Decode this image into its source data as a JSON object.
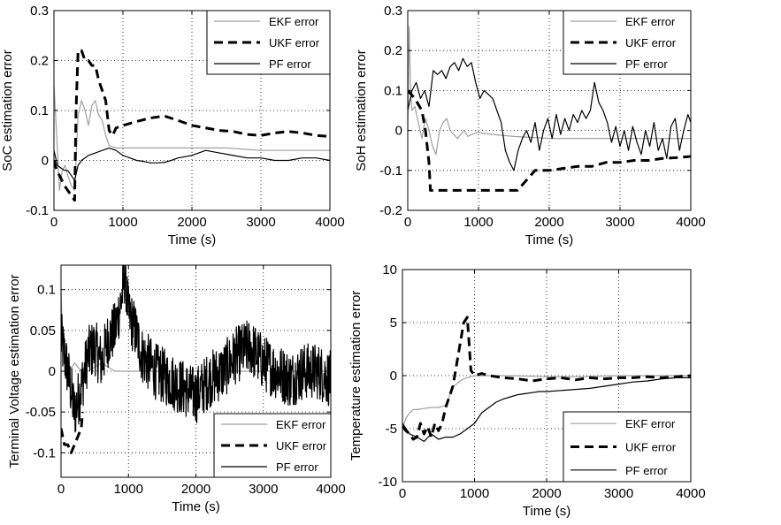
{
  "figure": {
    "layout": "2x2 grid of line charts"
  },
  "chart_data": [
    {
      "type": "line",
      "xlabel": "Time (s)",
      "ylabel": "SoC estimation error",
      "xlim": [
        0,
        4000
      ],
      "ylim": [
        -0.1,
        0.3
      ],
      "xticks": [
        0,
        1000,
        2000,
        3000,
        4000
      ],
      "yticks": [
        -0.1,
        0,
        0.1,
        0.2,
        0.3
      ],
      "xtick_labels": [
        "0",
        "1000",
        "2000",
        "3000",
        "4000"
      ],
      "ytick_labels": [
        "-0.1",
        "0",
        "0.1",
        "0.2",
        "0.3"
      ],
      "grid": true,
      "legend_position": "top-right",
      "series": [
        {
          "name": "EKF error",
          "color": "#a0a0a0",
          "style": "solid",
          "width": 1.2,
          "x": [
            0,
            40,
            80,
            120,
            160,
            200,
            250,
            300,
            350,
            400,
            450,
            500,
            550,
            600,
            650,
            700,
            750,
            800,
            900,
            1000,
            1200,
            1500,
            2000,
            2500,
            3000,
            3500,
            4000
          ],
          "y": [
            0.15,
            0.05,
            -0.06,
            -0.02,
            -0.01,
            -0.03,
            -0.05,
            -0.06,
            0.09,
            0.12,
            0.1,
            0.07,
            0.11,
            0.12,
            0.09,
            0.08,
            0.05,
            0.03,
            0.025,
            0.025,
            0.025,
            0.025,
            0.025,
            0.025,
            0.02,
            0.02,
            0.02
          ]
        },
        {
          "name": "UKF error",
          "color": "#000000",
          "style": "dashed",
          "width": 3,
          "x": [
            0,
            40,
            80,
            150,
            200,
            250,
            300,
            320,
            350,
            400,
            450,
            500,
            550,
            600,
            650,
            700,
            750,
            800,
            850,
            900,
            1000,
            1200,
            1400,
            1600,
            1800,
            2000,
            2200,
            2400,
            2600,
            2800,
            3000,
            3200,
            3400,
            3600,
            3800,
            4000
          ],
          "y": [
            0,
            -0.02,
            -0.03,
            -0.05,
            -0.06,
            -0.07,
            -0.08,
            0.1,
            0.22,
            0.22,
            0.2,
            0.2,
            0.19,
            0.19,
            0.16,
            0.14,
            0.12,
            0.06,
            0.05,
            0.065,
            0.07,
            0.078,
            0.085,
            0.089,
            0.08,
            0.07,
            0.065,
            0.06,
            0.058,
            0.052,
            0.05,
            0.055,
            0.058,
            0.055,
            0.05,
            0.048
          ]
        },
        {
          "name": "PF error",
          "color": "#000000",
          "style": "solid",
          "width": 1.2,
          "x": [
            0,
            50,
            100,
            150,
            200,
            250,
            300,
            350,
            400,
            500,
            600,
            700,
            800,
            900,
            1000,
            1100,
            1200,
            1300,
            1400,
            1500,
            1600,
            1700,
            1800,
            2000,
            2200,
            2400,
            2600,
            2800,
            3000,
            3200,
            3400,
            3600,
            3800,
            4000
          ],
          "y": [
            0.02,
            -0.01,
            -0.015,
            -0.02,
            -0.02,
            -0.03,
            -0.04,
            -0.01,
            0.0,
            0.01,
            0.015,
            0.02,
            0.025,
            0.02,
            0.01,
            0.005,
            0.0,
            -0.002,
            -0.005,
            -0.005,
            -0.004,
            0.0,
            0.005,
            0.01,
            0.02,
            0.015,
            0.01,
            0.005,
            0.005,
            0.0,
            0.0,
            0.005,
            0.005,
            0.0
          ]
        }
      ]
    },
    {
      "type": "line",
      "xlabel": "Time (s)",
      "ylabel": "SoH estimation error",
      "xlim": [
        0,
        4000
      ],
      "ylim": [
        -0.2,
        0.3
      ],
      "xticks": [
        0,
        1000,
        2000,
        3000,
        4000
      ],
      "yticks": [
        -0.2,
        -0.1,
        0,
        0.1,
        0.2,
        0.3
      ],
      "xtick_labels": [
        "0",
        "1000",
        "2000",
        "3000",
        "4000"
      ],
      "ytick_labels": [
        "-0.2",
        "-0.1",
        "0",
        "0.1",
        "0.2",
        "0.3"
      ],
      "grid": true,
      "legend_position": "top-right",
      "series": [
        {
          "name": "EKF error",
          "color": "#a0a0a0",
          "style": "solid",
          "width": 1.2,
          "x": [
            0,
            20,
            40,
            60,
            100,
            150,
            200,
            250,
            300,
            350,
            400,
            450,
            500,
            550,
            600,
            650,
            700,
            750,
            800,
            850,
            900,
            1000,
            1200,
            1500,
            2000,
            2500,
            3000,
            3500,
            4000
          ],
          "y": [
            0,
            0.26,
            0.1,
            0.05,
            0.06,
            0.02,
            -0.02,
            0.03,
            0.0,
            -0.04,
            -0.06,
            0.0,
            0.02,
            0.03,
            0.0,
            -0.01,
            -0.02,
            -0.01,
            0.0,
            -0.015,
            -0.01,
            -0.005,
            -0.01,
            -0.015,
            -0.02,
            -0.02,
            -0.02,
            -0.02,
            -0.02
          ]
        },
        {
          "name": "UKF error",
          "color": "#000000",
          "style": "dashed",
          "width": 3,
          "x": [
            0,
            100,
            200,
            250,
            300,
            320,
            350,
            500,
            800,
            1000,
            1200,
            1400,
            1550,
            1700,
            1800,
            1900,
            2000,
            2200,
            2400,
            2600,
            2800,
            3000,
            3200,
            3400,
            3600,
            3800,
            4000
          ],
          "y": [
            0.1,
            0.08,
            0.05,
            0.0,
            -0.08,
            -0.15,
            -0.15,
            -0.15,
            -0.15,
            -0.15,
            -0.15,
            -0.15,
            -0.15,
            -0.12,
            -0.1,
            -0.1,
            -0.1,
            -0.095,
            -0.09,
            -0.09,
            -0.08,
            -0.08,
            -0.075,
            -0.075,
            -0.07,
            -0.068,
            -0.065
          ]
        },
        {
          "name": "PF error",
          "color": "#000000",
          "style": "solid",
          "width": 1.2,
          "x": [
            0,
            60,
            120,
            180,
            240,
            300,
            360,
            420,
            480,
            540,
            600,
            660,
            720,
            780,
            840,
            900,
            960,
            1020,
            1080,
            1140,
            1200,
            1260,
            1320,
            1380,
            1440,
            1500,
            1560,
            1620,
            1680,
            1740,
            1800,
            1860,
            1920,
            1980,
            2040,
            2100,
            2160,
            2220,
            2280,
            2340,
            2400,
            2460,
            2520,
            2580,
            2640,
            2700,
            2760,
            2820,
            2880,
            2940,
            3000,
            3060,
            3120,
            3180,
            3240,
            3300,
            3360,
            3420,
            3480,
            3540,
            3600,
            3660,
            3720,
            3780,
            3840,
            3900,
            3960,
            4000
          ],
          "y": [
            0.05,
            0.1,
            0.12,
            0.08,
            0.1,
            0.06,
            0.15,
            0.14,
            0.15,
            0.13,
            0.16,
            0.17,
            0.15,
            0.18,
            0.16,
            0.17,
            0.12,
            0.08,
            0.1,
            0.09,
            0.08,
            0.05,
            0.02,
            -0.05,
            -0.08,
            -0.1,
            -0.05,
            -0.02,
            0.0,
            -0.03,
            0.02,
            -0.05,
            0.0,
            0.03,
            -0.02,
            0.04,
            -0.01,
            0.03,
            0.0,
            0.04,
            0.02,
            0.05,
            0.03,
            0.05,
            0.12,
            0.07,
            0.05,
            0.02,
            -0.03,
            0.01,
            -0.04,
            0.0,
            -0.05,
            0.01,
            -0.03,
            -0.06,
            0.0,
            -0.04,
            0.02,
            -0.05,
            -0.02,
            -0.07,
            0.01,
            0.03,
            -0.05,
            0.0,
            0.04,
            0.02
          ]
        }
      ]
    },
    {
      "type": "line",
      "xlabel": "Time (s)",
      "ylabel": "Terminal Voltage estimation error",
      "xlim": [
        0,
        4000
      ],
      "ylim": [
        -0.13,
        0.13
      ],
      "xticks": [
        0,
        1000,
        2000,
        3000,
        4000
      ],
      "yticks": [
        -0.1,
        -0.05,
        0,
        0.05,
        0.1
      ],
      "xtick_labels": [
        "0",
        "1000",
        "2000",
        "3000",
        "4000"
      ],
      "ytick_labels": [
        "-0.1",
        "-0.05",
        "0",
        "0.05",
        "0.1"
      ],
      "grid": true,
      "legend_position": "bottom-right",
      "series": [
        {
          "name": "EKF error",
          "color": "#a0a0a0",
          "style": "solid",
          "width": 1.2,
          "x": [
            0,
            20,
            40,
            80,
            120,
            200,
            300,
            400,
            600,
            800,
            1000,
            1500,
            2000,
            2500,
            3000,
            3500,
            4000
          ],
          "y": [
            0.1,
            0.05,
            0.02,
            0.01,
            0.0,
            0.01,
            0.0,
            0.0,
            0.01,
            0.0,
            0.0,
            0.0,
            0.0,
            0.0,
            0.0,
            0.0,
            0.0
          ]
        },
        {
          "name": "UKF error",
          "color": "#000000",
          "style": "dashed",
          "width": 3,
          "x": [
            0,
            50,
            100,
            150,
            200,
            250,
            300,
            320
          ],
          "y": [
            -0.07,
            -0.09,
            -0.09,
            -0.1,
            -0.09,
            -0.08,
            -0.07,
            -0.05
          ]
        },
        {
          "name": "PF error",
          "color": "#000000",
          "style": "solid",
          "width": 1.2,
          "x": [
            0,
            100,
            200,
            300,
            400,
            500,
            600,
            700,
            800,
            900,
            950,
            1000,
            1100,
            1200,
            1400,
            1600,
            1800,
            2000,
            2200,
            2400,
            2600,
            2800,
            3000,
            3200,
            3400,
            3600,
            3800,
            4000
          ],
          "y": [
            0.04,
            0.0,
            -0.05,
            -0.02,
            0.02,
            0.03,
            0.01,
            0.04,
            0.05,
            0.09,
            0.12,
            0.07,
            0.05,
            0.02,
            0.0,
            -0.01,
            -0.02,
            -0.03,
            -0.01,
            0.0,
            0.02,
            0.03,
            0.01,
            0.0,
            -0.01,
            0.0,
            0.0,
            -0.01
          ],
          "noise_amplitude": 0.035
        }
      ]
    },
    {
      "type": "line",
      "xlabel": "Time (s)",
      "ylabel": "Temperature estimation error",
      "xlim": [
        0,
        4000
      ],
      "ylim": [
        -10,
        10
      ],
      "xticks": [
        0,
        1000,
        2000,
        3000,
        4000
      ],
      "yticks": [
        -10,
        -5,
        0,
        5,
        10
      ],
      "xtick_labels": [
        "0",
        "1000",
        "2000",
        "3000",
        "4000"
      ],
      "ytick_labels": [
        "-10",
        "-5",
        "0",
        "5",
        "10"
      ],
      "grid": true,
      "legend_position": "bottom-right",
      "series": [
        {
          "name": "EKF error",
          "color": "#a0a0a0",
          "style": "solid",
          "width": 1.2,
          "x": [
            0,
            50,
            100,
            150,
            200,
            300,
            400,
            500,
            600,
            650,
            700,
            750,
            800,
            850,
            900,
            950,
            1000,
            1100,
            1200,
            1500,
            2000,
            2500,
            3000,
            3500,
            4000
          ],
          "y": [
            -5,
            -4,
            -3.5,
            -3.2,
            -3.2,
            -3.1,
            -3.0,
            -3.0,
            -2.8,
            -2.0,
            -1.0,
            -0.8,
            -0.5,
            -0.3,
            -0.2,
            -0.1,
            0.0,
            0.0,
            0.0,
            0.0,
            -0.1,
            -0.1,
            0.0,
            0.0,
            0.0
          ]
        },
        {
          "name": "UKF error",
          "color": "#000000",
          "style": "dashed",
          "width": 3,
          "x": [
            0,
            50,
            100,
            150,
            200,
            250,
            300,
            350,
            400,
            450,
            500,
            550,
            600,
            650,
            700,
            750,
            800,
            850,
            900,
            950,
            1000,
            1100,
            1200,
            1400,
            1600,
            1800,
            2000,
            2200,
            2400,
            2600,
            2800,
            3000,
            3200,
            3400,
            3600,
            3800,
            4000
          ],
          "y": [
            -4.8,
            -5.2,
            -5.5,
            -6,
            -5.8,
            -4.5,
            -5.5,
            -4.8,
            -5.8,
            -4.5,
            -5.2,
            -4.5,
            -3,
            -2,
            -1,
            1,
            3,
            5,
            5.5,
            0.5,
            0,
            0.2,
            0,
            -0.2,
            -0.3,
            -0.5,
            -0.3,
            -0.2,
            -0.4,
            -0.2,
            -0.3,
            -0.2,
            -0.2,
            -0.1,
            -0.2,
            -0.1,
            0
          ]
        },
        {
          "name": "PF error",
          "color": "#000000",
          "style": "solid",
          "width": 1.2,
          "x": [
            0,
            100,
            200,
            300,
            400,
            500,
            600,
            700,
            800,
            900,
            1000,
            1100,
            1200,
            1300,
            1400,
            1500,
            1600,
            1700,
            1800,
            1900,
            2000,
            2200,
            2400,
            2600,
            2800,
            3000,
            3200,
            3400,
            3600,
            3800,
            4000
          ],
          "y": [
            -4.5,
            -5.5,
            -5.8,
            -6.2,
            -5.5,
            -6.0,
            -5.8,
            -5.8,
            -5.5,
            -5.0,
            -4.5,
            -3.5,
            -3.0,
            -2.5,
            -2.2,
            -2.0,
            -1.8,
            -1.7,
            -1.6,
            -1.5,
            -1.5,
            -1.4,
            -1.3,
            -1.2,
            -1.0,
            -0.8,
            -0.6,
            -0.5,
            -0.3,
            -0.2,
            -0.2
          ]
        }
      ]
    }
  ]
}
